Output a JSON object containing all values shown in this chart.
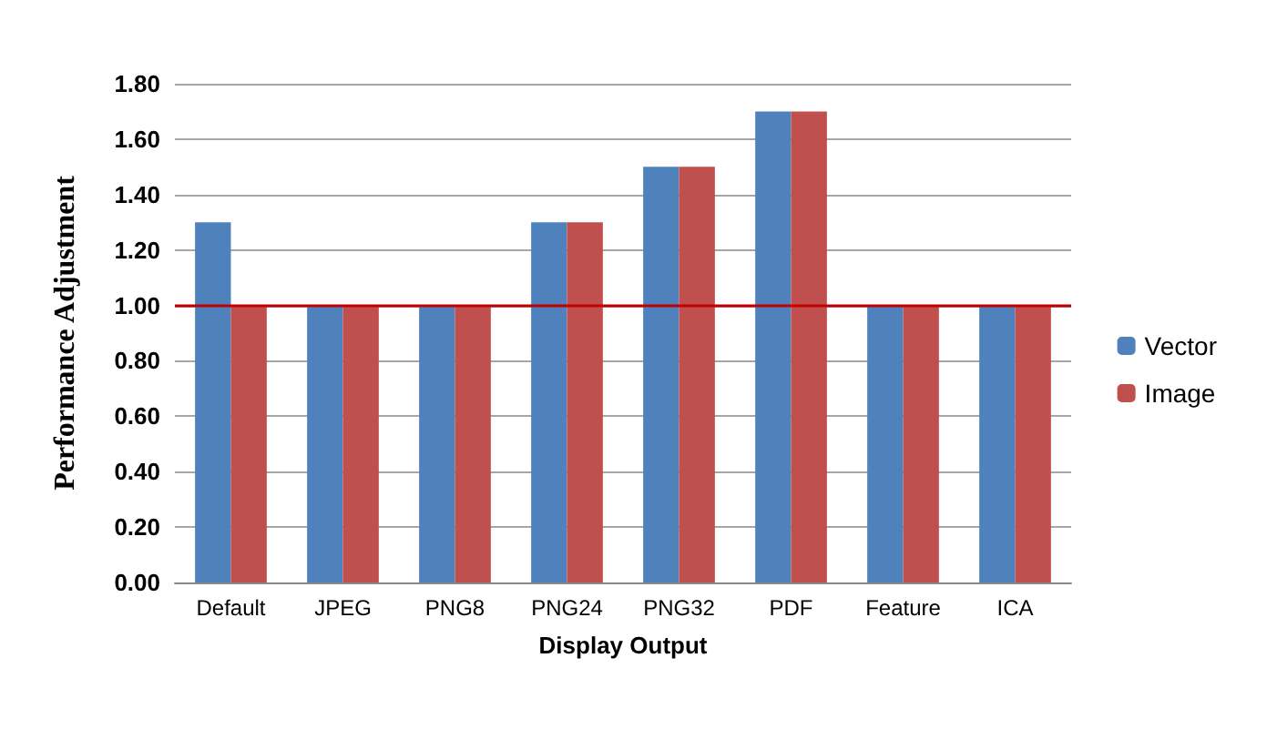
{
  "chart_data": {
    "type": "bar",
    "xlabel": "Display Output",
    "ylabel": "Performance Adjustment",
    "categories": [
      "Default",
      "JPEG",
      "PNG8",
      "PNG24",
      "PNG32",
      "PDF",
      "Feature",
      "ICA"
    ],
    "series": [
      {
        "name": "Vector",
        "color": "#4f81bd",
        "values": [
          1.3,
          1,
          1,
          1.3,
          1.5,
          1.7,
          1,
          1
        ]
      },
      {
        "name": "Image",
        "color": "#c0504d",
        "values": [
          1,
          1,
          1,
          1.3,
          1.5,
          1.7,
          1,
          1
        ]
      }
    ],
    "ylim": [
      0,
      1.8
    ],
    "yticks": [
      {
        "value": 0,
        "label": "0.00"
      },
      {
        "value": 0.2,
        "label": "0.20"
      },
      {
        "value": 0.4,
        "label": "0.40"
      },
      {
        "value": 0.6,
        "label": "0.60"
      },
      {
        "value": 0.8,
        "label": "0.80"
      },
      {
        "value": 1,
        "label": "1.00"
      },
      {
        "value": 1.2,
        "label": "1.20"
      },
      {
        "value": 1.4,
        "label": "1.40"
      },
      {
        "value": 1.6,
        "label": "1.60"
      },
      {
        "value": 1.8,
        "label": "1.80"
      }
    ],
    "grid": "y",
    "legend": "right",
    "ref_lines": [
      {
        "axis": "y",
        "value": 1,
        "color": "#c00000"
      }
    ]
  }
}
